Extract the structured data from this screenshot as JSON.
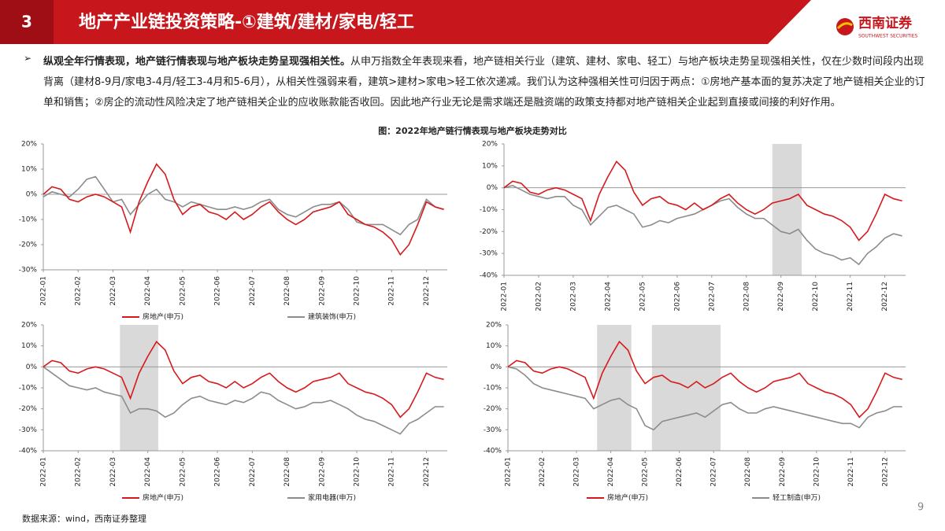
{
  "header": {
    "number": "3",
    "title": "地产产业链投资策略-①建筑/建材/家电/轻工",
    "logo": "西南证券",
    "logo_sub": "SOUTHWEST SECURITIES"
  },
  "paragraph_bold": "纵观全年行情表现，地产链行情表现与地产板块走势呈现强相关性。",
  "paragraph": "从申万指数全年表现来看，地产链相关行业（建筑、建材、家电、轻工）与地产板块走势呈现强相关性，仅在少数时间段内出现背离（建材8-9月/家电3-4月/轻工3-4月和5-6月），从相关性强弱来看，建筑>建材>家电>轻工依次递减。我们认为这种强相关性可归因于两点：①房地产基本面的复苏决定了地产链相关企业的订单和销售；②房企的流动性风险决定了地产链相关企业的应收账款能否收回。因此地产行业无论是需求端还是融资端的政策支持都对地产链相关企业起到直接或间接的利好作用。",
  "figure_title": "图：2022年地产链行情表现与地产板块走势对比",
  "source": "数据来源：wind，西南证券整理",
  "page_number": "9",
  "chart_data": [
    {
      "type": "line",
      "zero_line": true,
      "shaded": [],
      "shade_color": "#d9d9d9",
      "x": [
        0,
        0.25,
        0.5,
        0.75,
        1,
        1.25,
        1.5,
        1.75,
        2,
        2.25,
        2.5,
        2.75,
        3,
        3.25,
        3.5,
        3.75,
        4,
        4.25,
        4.5,
        4.75,
        5,
        5.25,
        5.5,
        5.75,
        6,
        6.25,
        6.5,
        6.75,
        7,
        7.25,
        7.5,
        7.75,
        8,
        8.25,
        8.5,
        8.75,
        9,
        9.25,
        9.5,
        9.75,
        10,
        10.25,
        10.5,
        10.75,
        11,
        11.25,
        11.5
      ],
      "xlim": [
        0,
        11.6
      ],
      "xticks": [
        {
          "value": 0,
          "label": "2022-01"
        },
        {
          "value": 1,
          "label": "2022-02"
        },
        {
          "value": 2,
          "label": "2022-03"
        },
        {
          "value": 3,
          "label": "2022-04"
        },
        {
          "value": 4,
          "label": "2022-05"
        },
        {
          "value": 5,
          "label": "2022-06"
        },
        {
          "value": 6,
          "label": "2022-07"
        },
        {
          "value": 7,
          "label": "2022-08"
        },
        {
          "value": 8,
          "label": "2022-09"
        },
        {
          "value": 9,
          "label": "2022-10"
        },
        {
          "value": 10,
          "label": "2022-11"
        },
        {
          "value": 11,
          "label": "2022-12"
        }
      ],
      "ylim": [
        -30,
        20
      ],
      "yticks": [
        {
          "value": -30,
          "label": "-30%"
        },
        {
          "value": -20,
          "label": "-20%"
        },
        {
          "value": -10,
          "label": "-10%"
        },
        {
          "value": 0,
          "label": "0%"
        },
        {
          "value": 10,
          "label": "10%"
        },
        {
          "value": 20,
          "label": "20%"
        }
      ],
      "series": [
        {
          "name": "房地产(申万)",
          "color": "#d7191c",
          "values": [
            0,
            3,
            2,
            -2,
            -3,
            -1,
            0,
            -1,
            -3,
            -5,
            -15,
            -3,
            5,
            12,
            8,
            -2,
            -8,
            -5,
            -4,
            -7,
            -8,
            -10,
            -7,
            -10,
            -8,
            -5,
            -3,
            -7,
            -10,
            -12,
            -10,
            -7,
            -6,
            -5,
            -3,
            -8,
            -10,
            -12,
            -13,
            -15,
            -18,
            -24,
            -20,
            -12,
            -3,
            -5,
            -6
          ]
        },
        {
          "name": "建筑装饰(申万)",
          "color": "#8c8c8c",
          "values": [
            -1,
            1,
            0,
            -1,
            2,
            6,
            7,
            2,
            -3,
            -2,
            -8,
            -4,
            0,
            2,
            -2,
            -3,
            -5,
            -3,
            -4,
            -5,
            -6,
            -6,
            -5,
            -6,
            -5,
            -3,
            -2,
            -6,
            -8,
            -9,
            -7,
            -5,
            -4,
            -4,
            -3,
            -6,
            -11,
            -12,
            -12,
            -12,
            -14,
            -16,
            -12,
            -10,
            -2,
            -5,
            -6
          ]
        }
      ]
    },
    {
      "type": "line",
      "zero_line": true,
      "shaded": [
        [
          7.75,
          8.6
        ]
      ],
      "shade_color": "#d9d9d9",
      "x": [
        0,
        0.25,
        0.5,
        0.75,
        1,
        1.25,
        1.5,
        1.75,
        2,
        2.25,
        2.5,
        2.75,
        3,
        3.25,
        3.5,
        3.75,
        4,
        4.25,
        4.5,
        4.75,
        5,
        5.25,
        5.5,
        5.75,
        6,
        6.25,
        6.5,
        6.75,
        7,
        7.25,
        7.5,
        7.75,
        8,
        8.25,
        8.5,
        8.75,
        9,
        9.25,
        9.5,
        9.75,
        10,
        10.25,
        10.5,
        10.75,
        11,
        11.25,
        11.5
      ],
      "xlim": [
        0,
        11.6
      ],
      "xticks": [
        {
          "value": 0,
          "label": "2022-01"
        },
        {
          "value": 1,
          "label": "2022-02"
        },
        {
          "value": 2,
          "label": "2022-03"
        },
        {
          "value": 3,
          "label": "2022-04"
        },
        {
          "value": 4,
          "label": "2022-05"
        },
        {
          "value": 5,
          "label": "2022-06"
        },
        {
          "value": 6,
          "label": "2022-07"
        },
        {
          "value": 7,
          "label": "2022-08"
        },
        {
          "value": 8,
          "label": "2022-09"
        },
        {
          "value": 9,
          "label": "2022-10"
        },
        {
          "value": 10,
          "label": "2022-11"
        },
        {
          "value": 11,
          "label": "2022-12"
        }
      ],
      "ylim": [
        -40,
        20
      ],
      "yticks": [
        {
          "value": -40,
          "label": "-40%"
        },
        {
          "value": -30,
          "label": "-30%"
        },
        {
          "value": -20,
          "label": "-20%"
        },
        {
          "value": -10,
          "label": "-10%"
        },
        {
          "value": 0,
          "label": "0%"
        },
        {
          "value": 10,
          "label": "10%"
        },
        {
          "value": 20,
          "label": "20%"
        }
      ],
      "series": [
        {
          "color": "#d7191c",
          "values": [
            0,
            3,
            2,
            -2,
            -3,
            -1,
            0,
            -1,
            -3,
            -5,
            -15,
            -3,
            5,
            12,
            8,
            -2,
            -8,
            -5,
            -4,
            -7,
            -8,
            -10,
            -7,
            -10,
            -8,
            -5,
            -3,
            -7,
            -10,
            -12,
            -10,
            -7,
            -6,
            -5,
            -3,
            -8,
            -10,
            -12,
            -13,
            -15,
            -18,
            -24,
            -20,
            -12,
            -3,
            -5,
            -6
          ]
        },
        {
          "color": "#8c8c8c",
          "values": [
            0,
            1,
            -1,
            -3,
            -4,
            -5,
            -4,
            -4,
            -8,
            -10,
            -17,
            -13,
            -9,
            -8,
            -10,
            -12,
            -18,
            -17,
            -15,
            -16,
            -14,
            -13,
            -12,
            -10,
            -8,
            -6,
            -5,
            -9,
            -12,
            -14,
            -14,
            -17,
            -20,
            -21,
            -19,
            -24,
            -28,
            -30,
            -31,
            -33,
            -32,
            -35,
            -30,
            -27,
            -23,
            -21,
            -22
          ]
        }
      ]
    },
    {
      "type": "line",
      "zero_line": true,
      "shaded": [
        [
          2.2,
          3.3
        ]
      ],
      "shade_color": "#d9d9d9",
      "x": [
        0,
        0.25,
        0.5,
        0.75,
        1,
        1.25,
        1.5,
        1.75,
        2,
        2.25,
        2.5,
        2.75,
        3,
        3.25,
        3.5,
        3.75,
        4,
        4.25,
        4.5,
        4.75,
        5,
        5.25,
        5.5,
        5.75,
        6,
        6.25,
        6.5,
        6.75,
        7,
        7.25,
        7.5,
        7.75,
        8,
        8.25,
        8.5,
        8.75,
        9,
        9.25,
        9.5,
        9.75,
        10,
        10.25,
        10.5,
        10.75,
        11,
        11.25,
        11.5
      ],
      "xlim": [
        0,
        11.6
      ],
      "xticks": [
        {
          "value": 0,
          "label": "2022-01"
        },
        {
          "value": 1,
          "label": "2022-02"
        },
        {
          "value": 2,
          "label": "2022-03"
        },
        {
          "value": 3,
          "label": "2022-04"
        },
        {
          "value": 4,
          "label": "2022-05"
        },
        {
          "value": 5,
          "label": "2022-06"
        },
        {
          "value": 6,
          "label": "2022-07"
        },
        {
          "value": 7,
          "label": "2022-08"
        },
        {
          "value": 8,
          "label": "2022-09"
        },
        {
          "value": 9,
          "label": "2022-10"
        },
        {
          "value": 10,
          "label": "2022-11"
        },
        {
          "value": 11,
          "label": "2022-12"
        }
      ],
      "ylim": [
        -40,
        20
      ],
      "yticks": [
        {
          "value": -40,
          "label": "-40%"
        },
        {
          "value": -30,
          "label": "-30%"
        },
        {
          "value": -20,
          "label": "-20%"
        },
        {
          "value": -10,
          "label": "-10%"
        },
        {
          "value": 0,
          "label": "0%"
        },
        {
          "value": 10,
          "label": "10%"
        },
        {
          "value": 20,
          "label": "20%"
        }
      ],
      "series": [
        {
          "name": "房地产(申万)",
          "color": "#d7191c",
          "values": [
            0,
            3,
            2,
            -2,
            -3,
            -1,
            0,
            -1,
            -3,
            -5,
            -15,
            -3,
            5,
            12,
            8,
            -2,
            -8,
            -5,
            -4,
            -7,
            -8,
            -10,
            -7,
            -10,
            -8,
            -5,
            -3,
            -7,
            -10,
            -12,
            -10,
            -7,
            -6,
            -5,
            -3,
            -8,
            -10,
            -12,
            -13,
            -15,
            -18,
            -24,
            -20,
            -12,
            -3,
            -5,
            -6
          ]
        },
        {
          "name": "家用电器(申万)",
          "color": "#8c8c8c",
          "values": [
            0,
            -3,
            -6,
            -9,
            -10,
            -11,
            -10,
            -12,
            -13,
            -14,
            -22,
            -20,
            -20,
            -21,
            -24,
            -22,
            -18,
            -15,
            -14,
            -16,
            -17,
            -18,
            -16,
            -17,
            -15,
            -12,
            -13,
            -16,
            -18,
            -20,
            -19,
            -17,
            -17,
            -16,
            -18,
            -20,
            -23,
            -25,
            -26,
            -28,
            -30,
            -32,
            -27,
            -25,
            -22,
            -19,
            -19
          ]
        }
      ]
    },
    {
      "type": "line",
      "zero_line": true,
      "shaded": [
        [
          2.6,
          3.6
        ],
        [
          4.2,
          6.2
        ]
      ],
      "shade_color": "#d9d9d9",
      "x": [
        0,
        0.25,
        0.5,
        0.75,
        1,
        1.25,
        1.5,
        1.75,
        2,
        2.25,
        2.5,
        2.75,
        3,
        3.25,
        3.5,
        3.75,
        4,
        4.25,
        4.5,
        4.75,
        5,
        5.25,
        5.5,
        5.75,
        6,
        6.25,
        6.5,
        6.75,
        7,
        7.25,
        7.5,
        7.75,
        8,
        8.25,
        8.5,
        8.75,
        9,
        9.25,
        9.5,
        9.75,
        10,
        10.25,
        10.5,
        10.75,
        11,
        11.25,
        11.5
      ],
      "xlim": [
        0,
        11.6
      ],
      "xticks": [
        {
          "value": 0,
          "label": "2022-01"
        },
        {
          "value": 1,
          "label": "2022-02"
        },
        {
          "value": 2,
          "label": "2022-03"
        },
        {
          "value": 3,
          "label": "2022-04"
        },
        {
          "value": 4,
          "label": "2022-05"
        },
        {
          "value": 5,
          "label": "2022-06"
        },
        {
          "value": 6,
          "label": "2022-07"
        },
        {
          "value": 7,
          "label": "2022-08"
        },
        {
          "value": 8,
          "label": "2022-09"
        },
        {
          "value": 9,
          "label": "2022-10"
        },
        {
          "value": 10,
          "label": "2022-11"
        },
        {
          "value": 11,
          "label": "2022-12"
        }
      ],
      "ylim": [
        -40,
        20
      ],
      "yticks": [
        {
          "value": -40,
          "label": "-40%"
        },
        {
          "value": -30,
          "label": "-30%"
        },
        {
          "value": -20,
          "label": "-20%"
        },
        {
          "value": -10,
          "label": "-10%"
        },
        {
          "value": 0,
          "label": "0%"
        },
        {
          "value": 10,
          "label": "10%"
        },
        {
          "value": 20,
          "label": "20%"
        }
      ],
      "series": [
        {
          "name": "房地产(申万)",
          "color": "#d7191c",
          "values": [
            0,
            3,
            2,
            -2,
            -3,
            -1,
            0,
            -1,
            -3,
            -5,
            -15,
            -3,
            5,
            12,
            8,
            -2,
            -8,
            -5,
            -4,
            -7,
            -8,
            -10,
            -7,
            -10,
            -8,
            -5,
            -3,
            -7,
            -10,
            -12,
            -10,
            -7,
            -6,
            -5,
            -3,
            -8,
            -10,
            -12,
            -13,
            -15,
            -18,
            -24,
            -20,
            -12,
            -3,
            -5,
            -6
          ]
        },
        {
          "name": "轻工制造(申万)",
          "color": "#8c8c8c",
          "values": [
            0,
            -1,
            -4,
            -8,
            -10,
            -11,
            -12,
            -13,
            -14,
            -15,
            -20,
            -18,
            -16,
            -15,
            -18,
            -20,
            -28,
            -30,
            -26,
            -25,
            -24,
            -23,
            -22,
            -24,
            -21,
            -18,
            -17,
            -20,
            -22,
            -22,
            -20,
            -19,
            -20,
            -21,
            -22,
            -23,
            -24,
            -25,
            -26,
            -27,
            -27,
            -29,
            -24,
            -22,
            -21,
            -19,
            -19
          ]
        }
      ]
    }
  ]
}
